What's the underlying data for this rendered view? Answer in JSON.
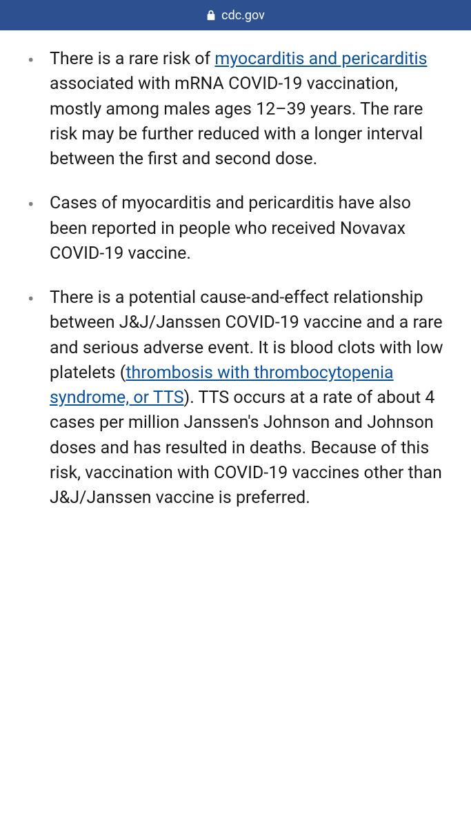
{
  "addressBar": {
    "url": "cdc.gov"
  },
  "colors": {
    "headerBg": "#2c5090",
    "headerText": "#ffffff",
    "bodyBg": "#ffffff",
    "textColor": "#1a1a1a",
    "bulletColor": "#808080",
    "linkColor": "#0b5097"
  },
  "bullets": [
    {
      "segments": [
        {
          "text": "There is a rare risk of ",
          "link": false
        },
        {
          "text": "myocarditis and pericarditis",
          "link": true
        },
        {
          "text": " associated with mRNA COVID-19 vaccination, mostly among males ages 12–39 years. The rare risk may be further reduced with a longer interval between the first and second dose.",
          "link": false
        }
      ]
    },
    {
      "segments": [
        {
          "text": "Cases of myocarditis and pericarditis have also been reported in people who received Novavax COVID-19 vaccine.",
          "link": false
        }
      ]
    },
    {
      "segments": [
        {
          "text": "There is a potential cause-and-effect relationship between J&J/Janssen COVID-19 vaccine and a rare and serious adverse event. It is blood clots with low platelets (",
          "link": false
        },
        {
          "text": "thrombosis with thrombocytopenia syndrome, or TTS",
          "link": true
        },
        {
          "text": "). TTS occurs at a rate of about 4 cases per million Janssen's Johnson and Johnson doses and has resulted in deaths. Because of this risk, vaccination with COVID-19 vaccines other than J&J/Janssen vaccine is preferred.",
          "link": false
        }
      ]
    }
  ]
}
